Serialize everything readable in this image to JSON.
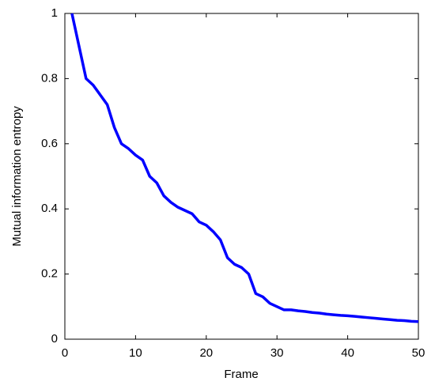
{
  "chart_data": {
    "type": "line",
    "xlabel": "Frame",
    "ylabel": "Mutual information entropy",
    "x": [
      1,
      2,
      3,
      4,
      5,
      6,
      7,
      8,
      9,
      10,
      11,
      12,
      13,
      14,
      15,
      16,
      17,
      18,
      19,
      20,
      21,
      22,
      23,
      24,
      25,
      26,
      27,
      28,
      29,
      30,
      31,
      32,
      33,
      34,
      35,
      36,
      37,
      38,
      39,
      40,
      41,
      42,
      43,
      44,
      45,
      46,
      47,
      48,
      49,
      50
    ],
    "series": [
      {
        "color": "#0000ff",
        "values": [
          1.0,
          0.9,
          0.8,
          0.78,
          0.75,
          0.72,
          0.65,
          0.6,
          0.585,
          0.565,
          0.55,
          0.5,
          0.48,
          0.44,
          0.42,
          0.405,
          0.395,
          0.385,
          0.36,
          0.35,
          0.33,
          0.305,
          0.25,
          0.23,
          0.22,
          0.2,
          0.14,
          0.13,
          0.11,
          0.1,
          0.09,
          0.09,
          0.087,
          0.085,
          0.082,
          0.08,
          0.077,
          0.075,
          0.073,
          0.072,
          0.07,
          0.068,
          0.066,
          0.064,
          0.062,
          0.06,
          0.058,
          0.057,
          0.055,
          0.054
        ]
      }
    ],
    "xlim": [
      0,
      50
    ],
    "ylim": [
      0,
      1
    ],
    "xticks": [
      0,
      10,
      20,
      30,
      40,
      50
    ],
    "yticks": [
      0,
      0.2,
      0.4,
      0.6,
      0.8,
      1
    ]
  }
}
